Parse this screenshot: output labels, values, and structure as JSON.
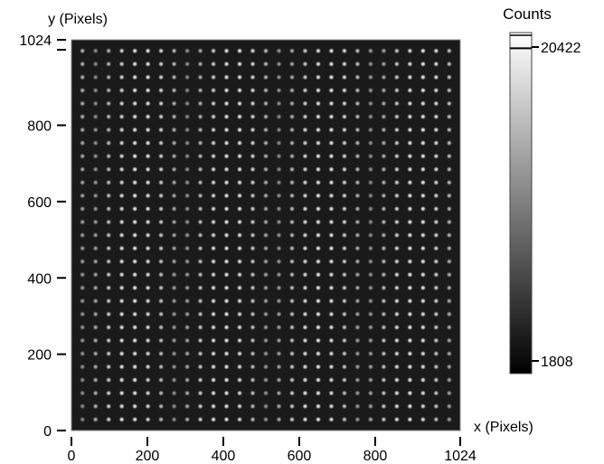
{
  "chart_data": {
    "type": "heatmap",
    "title": "",
    "xlabel": "x (Pixels)",
    "ylabel": "y (Pixels)",
    "xlim": [
      0,
      1024
    ],
    "ylim": [
      0,
      1024
    ],
    "x_ticks": [
      0,
      200,
      400,
      600,
      800,
      1024
    ],
    "y_ticks": [
      0,
      200,
      400,
      600,
      800,
      1024
    ],
    "grid": false,
    "colormap": "gray",
    "background_color": "#1a1a1a",
    "spot_grid": {
      "columns": 29,
      "rows": 29,
      "pitch_pixels": 34.5
    },
    "colorbar": {
      "title": "Counts",
      "min": 1808,
      "max": 20422,
      "min_label": "1808",
      "max_label": "20422",
      "marker_values": [
        20040
      ]
    }
  }
}
